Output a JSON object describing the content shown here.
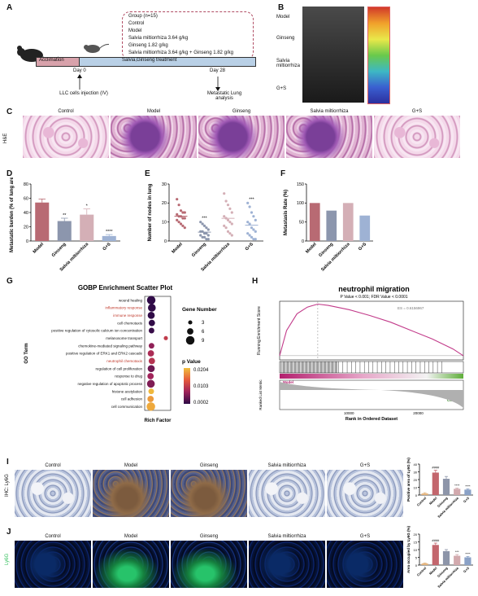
{
  "panels": {
    "A": {
      "label": "A",
      "group_title": "Group (n=15)",
      "groups": [
        "Control",
        "Model",
        "Salvia miltiorrhiza 3.64 g/kg",
        "Ginseng 1.82 g/kg",
        "Salvia miltiorrhiza 3.64 g/kg + Ginseng 1.82 g/kg"
      ],
      "acclimation": "Acclimation",
      "treatment": "Salvia,Ginseng treatment",
      "day0": "Day 0",
      "day28": "Day 28",
      "injection": "LLC cells injection (IV)",
      "analysis": "Metastatic Lung analysis"
    },
    "B": {
      "label": "B",
      "rows": [
        "Model",
        "Ginseng",
        "Salvia miltiorrhiza",
        "G+S"
      ]
    },
    "C": {
      "label": "C",
      "stain": "H&E",
      "columns": [
        "Control",
        "Model",
        "Ginseng",
        "Salvia miltiorrhiza",
        "G+S"
      ]
    },
    "D": {
      "label": "D"
    },
    "E": {
      "label": "E"
    },
    "F": {
      "label": "F"
    },
    "G": {
      "label": "G"
    },
    "H": {
      "label": "H"
    },
    "I": {
      "label": "I",
      "stain": "IHC: Ly6G",
      "columns": [
        "Control",
        "Model",
        "Ginseng",
        "Salvia miltiorrhiza",
        "G+S"
      ]
    },
    "J": {
      "label": "J",
      "stain": "Ly6G",
      "columns": [
        "Control",
        "Model",
        "Ginseng",
        "Salvia miltiorrhiza",
        "G+S"
      ]
    }
  },
  "chart_data": [
    {
      "panel": "D",
      "type": "bar",
      "categories": [
        "Model",
        "Ginseng",
        "Salvia miltiorrhiza",
        "G+S"
      ],
      "values": [
        54,
        28,
        37,
        7
      ],
      "errors": [
        5,
        4,
        8,
        2
      ],
      "significance": [
        "",
        "**",
        "*",
        "****"
      ],
      "ylabel": "Metastatic burden (% of lung area)",
      "ylim": [
        0,
        80
      ],
      "yticks": [
        0,
        20,
        40,
        60,
        80
      ],
      "colors": [
        "#b86a73",
        "#8c96ad",
        "#d4afb6",
        "#9eb2d4"
      ]
    },
    {
      "panel": "E",
      "type": "scatter",
      "categories": [
        "Model",
        "Ginseng",
        "Salvia miltiorrhiza",
        "G+S"
      ],
      "series": [
        {
          "values": [
            22,
            19,
            16,
            15,
            15,
            14,
            13,
            13,
            12,
            12,
            11,
            10,
            9,
            8,
            7
          ]
        },
        {
          "values": [
            10,
            9,
            8,
            7,
            6,
            5,
            5,
            4,
            4,
            3,
            3,
            2,
            2,
            1,
            1
          ]
        },
        {
          "values": [
            25,
            21,
            19,
            17,
            15,
            13,
            12,
            11,
            10,
            9,
            8,
            7,
            5,
            4,
            3
          ]
        },
        {
          "values": [
            20,
            18,
            15,
            13,
            11,
            10,
            9,
            7,
            6,
            5,
            4,
            3,
            2,
            1,
            1
          ]
        }
      ],
      "significance": [
        "",
        "***",
        "",
        "***"
      ],
      "ylabel": "Number of nodes in lung",
      "ylim": [
        0,
        30
      ],
      "yticks": [
        0,
        10,
        20,
        30
      ],
      "colors": [
        "#b86a73",
        "#8c96ad",
        "#d4afb6",
        "#9eb2d4"
      ]
    },
    {
      "panel": "F",
      "type": "bar",
      "categories": [
        "Model",
        "Ginseng",
        "Salvia miltiorrhiza",
        "G+S"
      ],
      "values": [
        100,
        80,
        100,
        67
      ],
      "ylabel": "Metastasis Rate (%)",
      "ylim": [
        0,
        150
      ],
      "yticks": [
        0,
        50,
        100,
        150
      ],
      "colors": [
        "#b86a73",
        "#8c96ad",
        "#d4afb6",
        "#9eb2d4"
      ]
    },
    {
      "panel": "G",
      "type": "scatter",
      "title": "GOBP Enrichment Scatter Plot",
      "terms": [
        "wound healing",
        "inflammatory response",
        "immune response",
        "cell chemotaxis",
        "positive regulation of cytosolic calcium ion concentration",
        "melanosome transport",
        "chemokine-mediated signaling pathway",
        "positive regulation of ERK1 and ERK2 cascade",
        "neutrophil chemotaxis",
        "regulation of cell proliferation",
        "response to drug",
        "negative regulation of apoptotic process",
        "histone acetylation",
        "cell adhesion",
        "cell communication"
      ],
      "highlighted": [
        "inflammatory response",
        "immune response",
        "neutrophil chemotaxis"
      ],
      "rich_factor": [
        0.1,
        0.12,
        0.1,
        0.12,
        0.11,
        0.55,
        0.11,
        0.09,
        0.12,
        0.1,
        0.08,
        0.09,
        0.1,
        0.08,
        0.09
      ],
      "gene_number": [
        9,
        8,
        7,
        6,
        5,
        3,
        5,
        6,
        6,
        7,
        6,
        8,
        5,
        6,
        9
      ],
      "p_value": [
        0.0004,
        0.0003,
        0.0003,
        0.0004,
        0.0008,
        0.01,
        0.006,
        0.008,
        0.009,
        0.004,
        0.007,
        0.005,
        0.02,
        0.018,
        0.019
      ],
      "xlabel": "Rich Factor",
      "ylabel": "GO Term",
      "size_legend_title": "Gene Number",
      "size_legend": [
        3,
        6,
        9
      ],
      "color_legend_title": "p Value",
      "color_legend": [
        "0.0204",
        "0.0103",
        "0.0002"
      ]
    },
    {
      "panel": "H",
      "type": "line",
      "title": "neutrophil migration",
      "subtitle": "P Value < 0.001; FDR Value < 0.0001",
      "ylabel": "Running Enrichment Score",
      "ylabel2": "Ranked List Metric",
      "xlabel": "Rank in Ordered Dataset",
      "es_label": "ES = 0.6156967",
      "pos_label": "Model",
      "neg_label": "Control",
      "xticks": [
        10000,
        20000
      ],
      "es_curve": [
        [
          0,
          0.0
        ],
        [
          1000,
          0.3
        ],
        [
          2500,
          0.5
        ],
        [
          4000,
          0.58
        ],
        [
          5500,
          0.616
        ],
        [
          7000,
          0.6
        ],
        [
          10000,
          0.55
        ],
        [
          13000,
          0.48
        ],
        [
          16000,
          0.4
        ],
        [
          19000,
          0.3
        ],
        [
          22000,
          0.2
        ],
        [
          25000,
          0.08
        ],
        [
          26500,
          0.0
        ]
      ]
    },
    {
      "panel": "I",
      "type": "bar",
      "categories": [
        "Control",
        "Model",
        "Ginseng",
        "Salvia miltiorrhiza",
        "G+S"
      ],
      "values": [
        2,
        29,
        21,
        8,
        7
      ],
      "errors": [
        1,
        3,
        3,
        1,
        1
      ],
      "significance": [
        "",
        "####",
        "",
        "****",
        "****"
      ],
      "ylabel": "Positive area of Ly6G (%)",
      "ylim": [
        0,
        40
      ],
      "yticks": [
        0,
        10,
        20,
        30,
        40
      ],
      "colors": [
        "#e3b27a",
        "#c3666d",
        "#8d95a9",
        "#d2a9ad",
        "#8aa1c6"
      ]
    },
    {
      "panel": "J",
      "type": "bar",
      "categories": [
        "Control",
        "Model",
        "Ginseng",
        "Salvia miltiorrhiza",
        "G+S"
      ],
      "values": [
        1,
        13,
        9,
        6,
        5
      ],
      "errors": [
        0.3,
        1.2,
        1,
        0.8,
        0.6
      ],
      "significance": [
        "",
        "####",
        "",
        "***",
        "****"
      ],
      "ylabel": "Area occupied by Ly6G (%)",
      "ylim": [
        0,
        20
      ],
      "yticks": [
        0,
        5,
        10,
        15,
        20
      ],
      "colors": [
        "#e3b27a",
        "#c3666d",
        "#8d95a9",
        "#d2a9ad",
        "#8aa1c6"
      ]
    }
  ]
}
